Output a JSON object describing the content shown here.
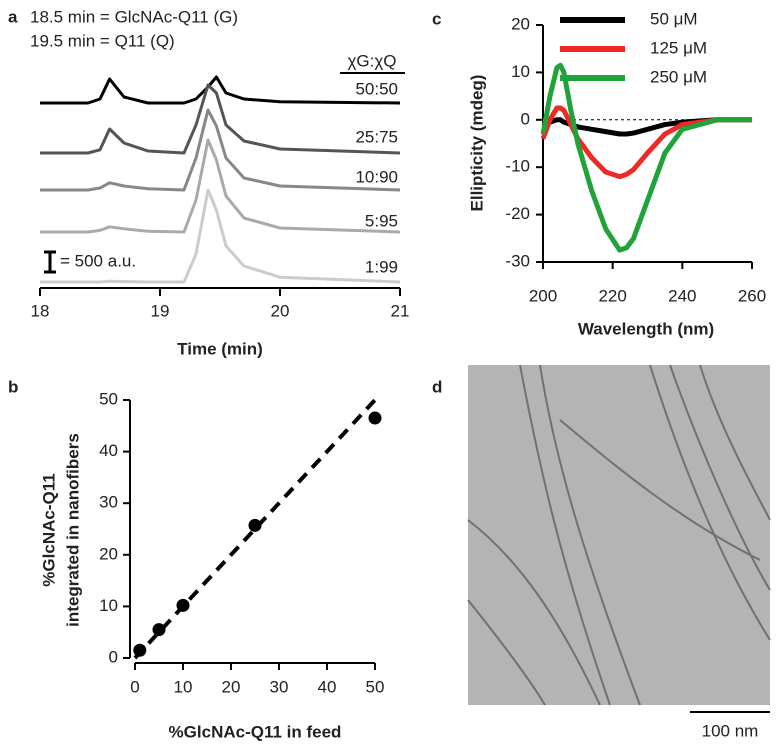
{
  "chart_data": [
    {
      "type": "chromatogram",
      "label": "a",
      "annotations": [
        "18.5 min = GlcNAc-Q11 (G)",
        "19.5 min = Q11 (Q)"
      ],
      "legend_title": "χG:χQ",
      "x": [
        18,
        18.4,
        18.5,
        18.58,
        18.7,
        18.9,
        19.2,
        19.3,
        19.4,
        19.47,
        19.55,
        19.7,
        20,
        21
      ],
      "series": [
        {
          "name": "50:50",
          "color": "#000000",
          "values": [
            0,
            0,
            100,
            600,
            150,
            0,
            0,
            100,
            400,
            650,
            250,
            100,
            30,
            0
          ]
        },
        {
          "name": "25:75",
          "color": "#555555",
          "values": [
            0,
            0,
            80,
            600,
            250,
            50,
            0,
            700,
            1700,
            1500,
            700,
            300,
            100,
            0
          ]
        },
        {
          "name": "10:90",
          "color": "#888888",
          "values": [
            0,
            0,
            50,
            180,
            100,
            30,
            0,
            800,
            2000,
            1600,
            800,
            300,
            100,
            0
          ]
        },
        {
          "name": "5:95",
          "color": "#aaaaaa",
          "values": [
            0,
            0,
            40,
            130,
            80,
            20,
            0,
            800,
            2300,
            1800,
            900,
            350,
            100,
            0
          ]
        },
        {
          "name": "1:99",
          "color": "#cccccc",
          "values": [
            0,
            0,
            0,
            20,
            10,
            0,
            0,
            700,
            2300,
            1800,
            900,
            400,
            120,
            0
          ]
        }
      ],
      "scale_bar": {
        "value": 500,
        "label": "= 500 a.u."
      },
      "xlim": [
        18,
        21
      ],
      "xticks": [
        18,
        19,
        20,
        21
      ],
      "xlabel": "Time (min)"
    },
    {
      "type": "line",
      "label": "c",
      "x": [
        200,
        202,
        204,
        205,
        206,
        208,
        210,
        214,
        218,
        222,
        224,
        226,
        230,
        235,
        240,
        250,
        260
      ],
      "series": [
        {
          "name": "50  μM",
          "color": "#000000",
          "values": [
            -1.5,
            -0.5,
            0,
            0,
            -0.5,
            -1,
            -1.5,
            -2,
            -2.5,
            -3,
            -3,
            -2.8,
            -2,
            -1,
            -0.5,
            0,
            0
          ]
        },
        {
          "name": "125 μM",
          "color": "#ee2a24",
          "values": [
            -4,
            0,
            2.5,
            2.5,
            2,
            -1,
            -4,
            -8,
            -11,
            -12,
            -11.5,
            -10.5,
            -7,
            -3,
            -1,
            0,
            0
          ]
        },
        {
          "name": "250 μM",
          "color": "#1fa33a",
          "values": [
            -3,
            5,
            11,
            11.5,
            10,
            2,
            -5,
            -15,
            -23,
            -27.5,
            -27,
            -25,
            -17,
            -7,
            -2,
            0,
            0
          ]
        }
      ],
      "xlim": [
        200,
        260
      ],
      "xticks": [
        200,
        220,
        240,
        260
      ],
      "ylim": [
        -30,
        20
      ],
      "yticks": [
        -30,
        -20,
        -10,
        0,
        10,
        20
      ],
      "xlabel": "Wavelength (nm)",
      "ylabel": "Ellipticity (mdeg)"
    },
    {
      "type": "scatter",
      "label": "b",
      "x": [
        1,
        5,
        10,
        25,
        50
      ],
      "values": [
        1.5,
        5.5,
        10.2,
        25.7,
        46.5
      ],
      "color": "#000000",
      "fit_line": {
        "x": [
          0,
          50
        ],
        "values": [
          0,
          50
        ]
      },
      "xlim": [
        0,
        50
      ],
      "xticks": [
        0,
        10,
        20,
        30,
        40,
        50
      ],
      "ylim": [
        0,
        50
      ],
      "yticks": [
        0,
        10,
        20,
        30,
        40,
        50
      ],
      "xlabel": "%GlcNAc-Q11 in feed",
      "ylabel": [
        "%GlcNAc-Q11",
        "integrated in nanofibers"
      ]
    }
  ],
  "image_panel": {
    "label": "d",
    "scale_bar": "100 nm"
  }
}
